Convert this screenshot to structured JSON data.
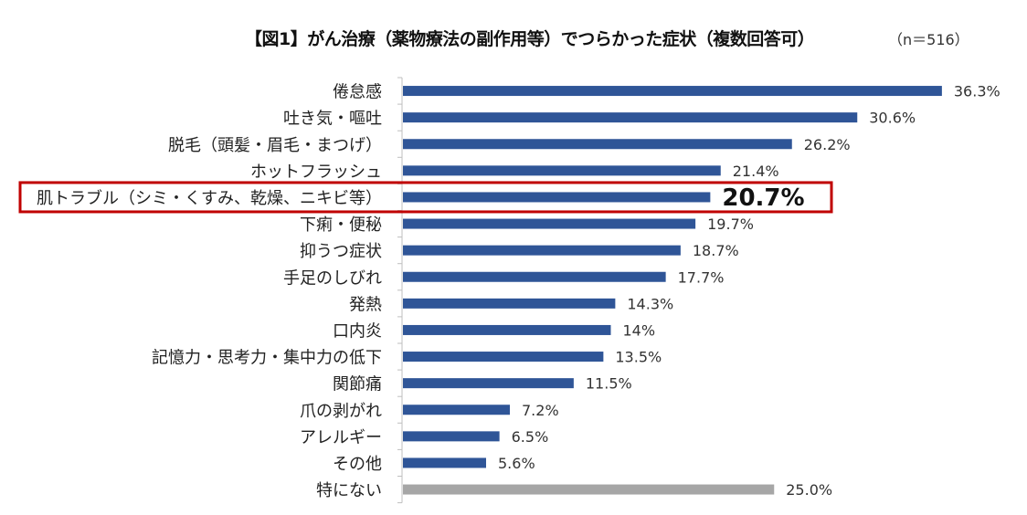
{
  "header": {
    "title": "【図1】がん治療（薬物療法の副作用等）でつらかった症状（複数回答可）",
    "sample_size": "（n＝516）"
  },
  "colors": {
    "bar": "#2f5597",
    "bar_none": "#a6a6a6",
    "highlight_box": "#c00000",
    "axis": "#bfbfbf"
  },
  "chart_data": {
    "type": "bar",
    "orientation": "horizontal",
    "title": "【図1】がん治療（薬物療法の副作用等）でつらかった症状（複数回答可）",
    "subtitle": "（n＝516）",
    "xlabel": "",
    "ylabel": "",
    "unit": "%",
    "xlim": [
      0,
      40
    ],
    "grid": false,
    "legend": "none",
    "highlighted_category": "肌トラブル（シミ・くすみ、乾燥、ニキビ等）",
    "categories": [
      "倦怠感",
      "吐き気・嘔吐",
      "脱毛（頭髪・眉毛・まつげ）",
      "ホットフラッシュ",
      "肌トラブル（シミ・くすみ、乾燥、ニキビ等）",
      "下痢・便秘",
      "抑うつ症状",
      "手足のしびれ",
      "発熱",
      "口内炎",
      "記憶力・思考力・集中力の低下",
      "関節痛",
      "爪の剥がれ",
      "アレルギー",
      "その他",
      "特にない"
    ],
    "values": [
      36.3,
      30.6,
      26.2,
      21.4,
      20.7,
      19.7,
      18.7,
      17.7,
      14.3,
      14.0,
      13.5,
      11.5,
      7.2,
      6.5,
      5.6,
      25.0
    ],
    "value_labels": [
      "36.3%",
      "30.6%",
      "26.2%",
      "21.4%",
      "20.7%",
      "19.7%",
      "18.7%",
      "17.7%",
      "14.3%",
      "14%",
      "13.5%",
      "11.5%",
      "7.2%",
      "6.5%",
      "5.6%",
      "25.0%"
    ]
  }
}
